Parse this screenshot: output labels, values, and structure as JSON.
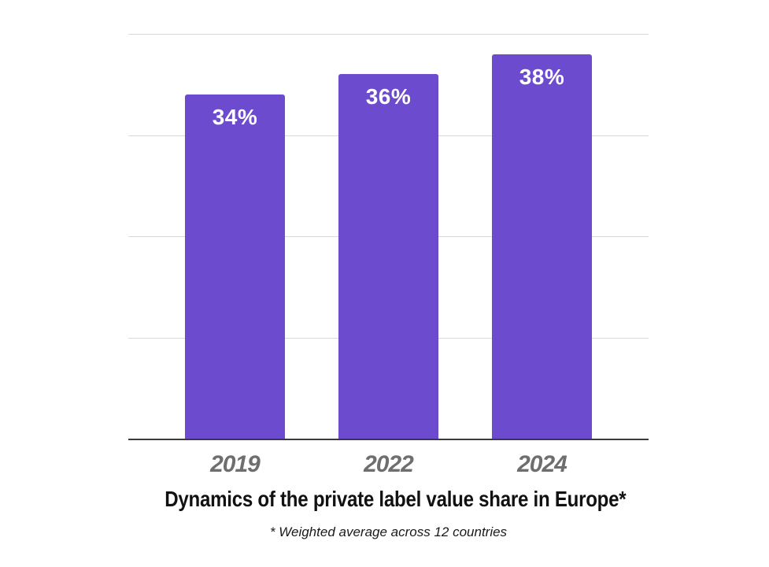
{
  "chart_data": {
    "type": "bar",
    "categories": [
      "2019",
      "2022",
      "2024"
    ],
    "values": [
      34,
      36,
      38
    ],
    "data_labels": [
      "34%",
      "36%",
      "38%"
    ],
    "series": [
      {
        "name": "Private label value share",
        "values": [
          34,
          36,
          38
        ]
      }
    ],
    "title": "Dynamics of the private label value share in Europe*",
    "footnote": "* Weighted average across 12 countries",
    "xlabel": "",
    "ylabel": "",
    "ylim": [
      0,
      40
    ],
    "gridline_step": 10,
    "grid": true,
    "legend_position": "none",
    "y_tick_labels_visible": false,
    "colors": {
      "bar": "#6c4bce",
      "data_label": "#ffffff",
      "gridline": "#d9d9d9",
      "axis": "#3b3b3b",
      "tick_label": "#6e6e6e",
      "title": "#111111",
      "footnote": "#1a1a1a",
      "background": "#ffffff"
    }
  }
}
